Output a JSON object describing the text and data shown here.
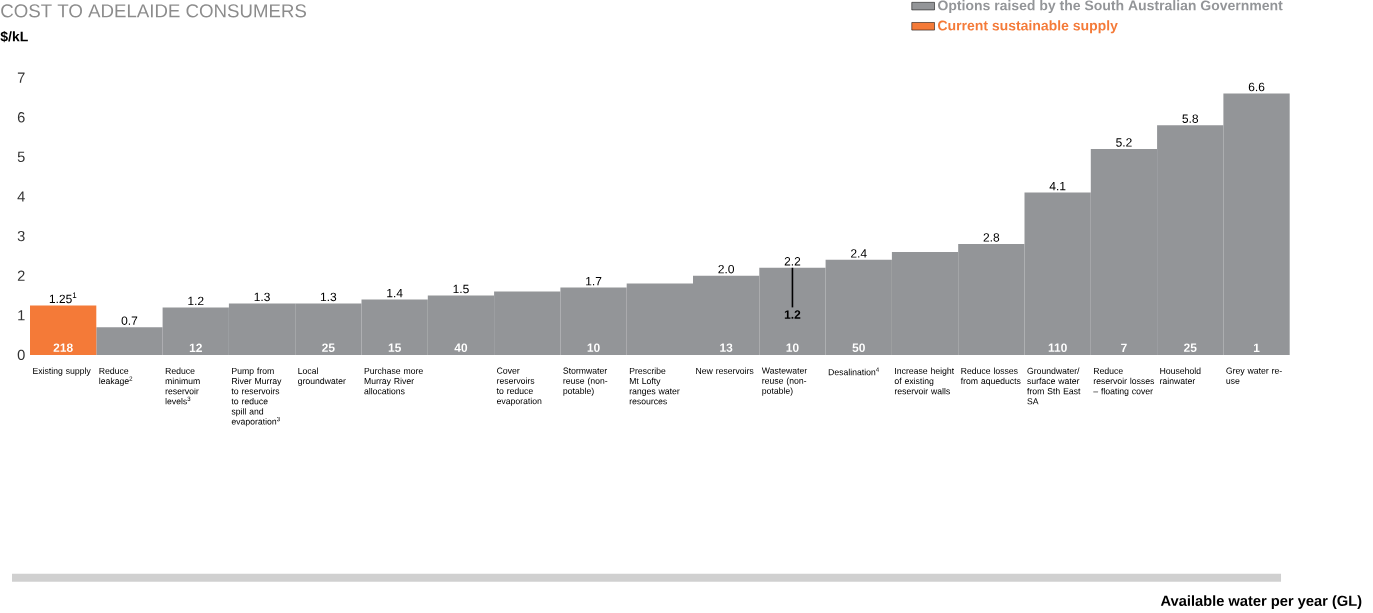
{
  "chart_data": {
    "type": "bar",
    "title": "COST TO ADELAIDE CONSUMERS",
    "ylabel": "$/kL",
    "categories": [
      "Existing supply",
      "Reduce leakage$^{2}$",
      "Reduce minimum reservoir levels$^{3}$",
      "Pump from River Murray to reservoirs to reduce spill and evaporation$^{3}$",
      "Local groundwater",
      "Purchase more Murray River allocations",
      null,
      "Cover reservoirs to reduce evaporation",
      "Stormwater reuse (non-potable)",
      "Prescribe Mt Lofty ranges water resources",
      "New reservoirs",
      "Wastewater reuse (non-potable)",
      "Desalination$^{4}$",
      "Increase height of existing reservoir walls",
      "Reduce losses from aqueducts",
      "Groundwater/ surface water from Sth East SA",
      "Reduce reservoir losses – floating cover",
      "Household rainwater",
      "Grey water re-use"
    ],
    "series": [
      {
        "name": "Options raised by the South Australian Government",
        "color": "#939598",
        "values": [
          null,
          0.7,
          1.2,
          1.3,
          1.3,
          1.4,
          1.5,
          1.6,
          1.7,
          1.8,
          2.0,
          2.2,
          2.4,
          2.6,
          2.8,
          4.1,
          5.2,
          5.8,
          6.6
        ],
        "value_labels": [
          null,
          "0.7",
          "1.2",
          "1.3",
          "1.3",
          "1.4",
          "1.5",
          null,
          "1.7",
          null,
          "2.0",
          "2.2",
          "2.4",
          null,
          "2.8",
          "4.1",
          "5.2",
          "5.8",
          "6.6"
        ],
        "errors": [
          null,
          null,
          null,
          null,
          null,
          null,
          null,
          null,
          null,
          null,
          null,
          [
            1.2,
            2.2
          ],
          null,
          null,
          null,
          null,
          null,
          null,
          null
        ]
      },
      {
        "name": "Current sustainable supply",
        "color": "#f47a38",
        "values": [
          1.25,
          null,
          null,
          null,
          null,
          null,
          null,
          null,
          null,
          null,
          null,
          null,
          null,
          null,
          null,
          null,
          null,
          null,
          null
        ],
        "value_labels": [
          "1.25$^{1}$",
          null,
          null,
          null,
          null,
          null,
          null,
          null,
          null,
          null,
          null,
          null,
          null,
          null,
          null,
          null,
          null,
          null,
          null
        ]
      }
    ],
    "ylim": [
      0,
      7
    ],
    "yticks": [
      0,
      1,
      2,
      3,
      4,
      5,
      6,
      7
    ],
    "legend": "top right",
    "annotations": [
      {
        "text": "218",
        "x": "Existing supply",
        "y": 0
      },
      {
        "text": "12",
        "x": "Reduce minimum reservoir levels$^{3}$",
        "y": 0
      },
      {
        "text": "25",
        "x": "Local groundwater",
        "y": 0
      },
      {
        "text": "15",
        "x": "Purchase more Murray River allocations",
        "y": 0
      },
      {
        "text": "40",
        "y": 0
      },
      {
        "text": "10",
        "x": "Stormwater reuse (non-potable)",
        "y": 0
      },
      {
        "text": "13",
        "x": "New reservoirs",
        "y": 0
      },
      {
        "text": "10",
        "x": "Wastewater reuse (non-potable)",
        "y": 0
      },
      "1.2",
      {
        "text": "50",
        "x": "Desalination$^{4}$",
        "y": 0
      },
      {
        "text": "110",
        "x": "Groundwater/ surface water from Sth East SA",
        "y": 0
      },
      {
        "text": "7",
        "x": "Reduce reservoir losses – floating cover",
        "y": 0
      },
      {
        "text": "25",
        "x": "Household rainwater",
        "y": 0
      },
      {
        "text": "1",
        "x": "Grey water re-use",
        "y": 0
      },
      "Available water per year (GL)"
    ]
  }
}
